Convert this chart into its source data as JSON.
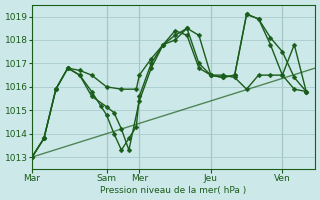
{
  "bg_color": "#cce8e8",
  "grid_color": "#aacccc",
  "line_color": "#1a5c1a",
  "ylabel_text": "Pression niveau de la mer( hPa )",
  "ylim": [
    1012.5,
    1019.5
  ],
  "yticks": [
    1013,
    1014,
    1015,
    1016,
    1017,
    1018,
    1019
  ],
  "xtick_labels": [
    "Mar",
    "Sam",
    "Mer",
    "Jeu",
    "Ven"
  ],
  "xtick_positions": [
    0,
    50,
    72,
    120,
    168
  ],
  "total_hours": 190,
  "trend_line": {
    "x": [
      0,
      190
    ],
    "y": [
      1013.0,
      1016.8
    ]
  },
  "series1": {
    "x": [
      0,
      8,
      16,
      24,
      32,
      40,
      50,
      60,
      70,
      72,
      80,
      88,
      96,
      104,
      112,
      120,
      128,
      136,
      144,
      152,
      160,
      168,
      176,
      184
    ],
    "y": [
      1013.0,
      1013.8,
      1015.9,
      1016.8,
      1016.7,
      1016.5,
      1016.0,
      1015.9,
      1015.9,
      1016.5,
      1017.2,
      1017.8,
      1018.0,
      1018.5,
      1018.2,
      1016.5,
      1016.5,
      1016.4,
      1015.9,
      1016.5,
      1016.5,
      1016.5,
      1015.9,
      1015.8
    ],
    "style": "solid",
    "marker": true
  },
  "series2": {
    "x": [
      0,
      8,
      16,
      24,
      32,
      40,
      50,
      55,
      60,
      65,
      72,
      80,
      88,
      96,
      104,
      112,
      120,
      128,
      136,
      144,
      152,
      160,
      168,
      176,
      184
    ],
    "y": [
      1013.0,
      1013.8,
      1015.9,
      1016.8,
      1016.5,
      1015.6,
      1015.15,
      1014.9,
      1014.2,
      1013.3,
      1015.4,
      1016.8,
      1017.8,
      1018.4,
      1018.2,
      1016.8,
      1016.5,
      1016.4,
      1016.5,
      1019.1,
      1018.9,
      1018.1,
      1017.5,
      1016.4,
      1015.8
    ],
    "style": "solid",
    "marker": true
  },
  "series3": {
    "x": [
      0,
      8,
      16,
      24,
      32,
      40,
      46,
      50,
      55,
      60,
      65,
      70,
      72,
      80,
      88,
      96,
      104,
      112,
      120,
      128,
      136,
      144,
      152,
      160,
      168,
      176,
      184
    ],
    "y": [
      1013.0,
      1013.8,
      1015.9,
      1016.8,
      1016.5,
      1015.8,
      1015.2,
      1014.8,
      1014.0,
      1013.3,
      1013.8,
      1014.3,
      1015.6,
      1017.0,
      1017.8,
      1018.2,
      1018.5,
      1017.0,
      1016.5,
      1016.4,
      1016.5,
      1019.1,
      1018.9,
      1017.8,
      1016.5,
      1017.8,
      1015.8
    ],
    "style": "solid",
    "marker": true
  }
}
